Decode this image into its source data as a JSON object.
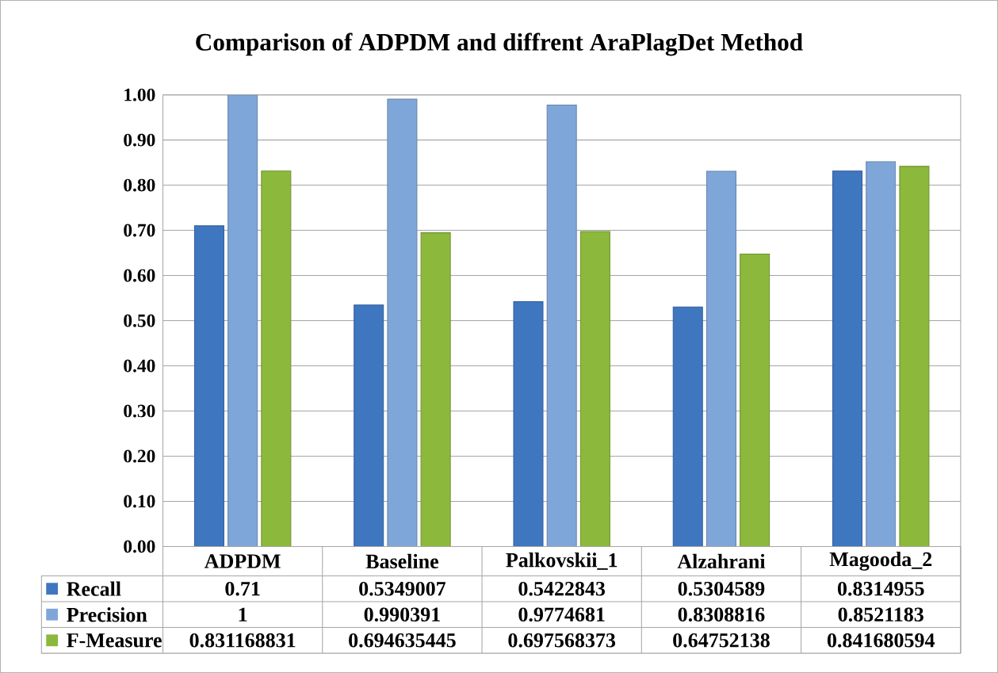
{
  "chart_data": {
    "type": "bar",
    "title": "Comparison of ADPDM and diffrent AraPlagDet Method",
    "categories": [
      "ADPDM",
      "Baseline",
      "Palkovskii_1",
      "Alzahrani",
      "Magooda_2"
    ],
    "series": [
      {
        "name": "Recall",
        "color": "#3f76c0",
        "values": [
          0.71,
          0.5349007,
          0.5422843,
          0.5304589,
          0.8314955
        ]
      },
      {
        "name": "Precision",
        "color": "#7fa6d8",
        "values": [
          1,
          0.990391,
          0.9774681,
          0.8308816,
          0.8521183
        ]
      },
      {
        "name": "F-Measure",
        "color": "#8cb83c",
        "values": [
          0.831168831,
          0.694635445,
          0.697568373,
          0.64752138,
          0.841680594
        ]
      }
    ],
    "ylim": [
      0,
      1
    ],
    "yticks": [
      {
        "value": 0,
        "label": "0.00"
      },
      {
        "value": 0.1,
        "label": "0.10"
      },
      {
        "value": 0.2,
        "label": "0.20"
      },
      {
        "value": 0.3,
        "label": "0.30"
      },
      {
        "value": 0.4,
        "label": "0.40"
      },
      {
        "value": 0.5,
        "label": "0.50"
      },
      {
        "value": 0.6,
        "label": "0.60"
      },
      {
        "value": 0.7,
        "label": "0.70"
      },
      {
        "value": 0.8,
        "label": "0.80"
      },
      {
        "value": 0.9,
        "label": "0.90"
      },
      {
        "value": 1,
        "label": "1.00"
      }
    ],
    "grid": "y",
    "legend": "bottom",
    "data_labels": true
  }
}
